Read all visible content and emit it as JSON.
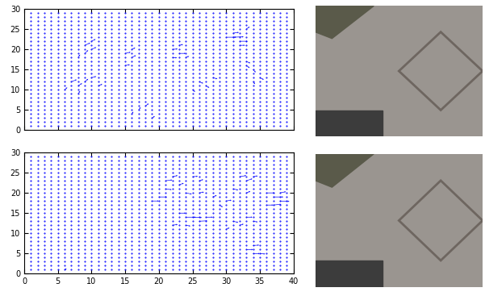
{
  "chart_data": [
    {
      "type": "quiver",
      "color": "#0000ff",
      "marker": "point",
      "xlim": [
        0,
        40
      ],
      "ylim": [
        0,
        30
      ],
      "xticks": [
        0,
        5,
        10,
        15,
        20,
        25,
        30,
        35,
        40
      ],
      "yticks": [
        0,
        5,
        10,
        15,
        20,
        25,
        30
      ],
      "tick_labels": "y",
      "grid_x": [
        1,
        2,
        3,
        4,
        5,
        6,
        7,
        8,
        9,
        10,
        11,
        12,
        13,
        14,
        15,
        16,
        17,
        18,
        19,
        20,
        21,
        22,
        23,
        24,
        25,
        26,
        27,
        28,
        29,
        30,
        31,
        32,
        33,
        34,
        35,
        36,
        37,
        38,
        39
      ],
      "grid_y": [
        1,
        2,
        3,
        4,
        5,
        6,
        7,
        8,
        9,
        10,
        11,
        12,
        13,
        14,
        15,
        16,
        17,
        18,
        19,
        20,
        21,
        22,
        23,
        24,
        25,
        26,
        27,
        28,
        29
      ],
      "vectors": [
        [
          9,
          21,
          0.8,
          0.6
        ],
        [
          10,
          22,
          0.6,
          0.5
        ],
        [
          9,
          19,
          0.5,
          0.8
        ],
        [
          10,
          20,
          0.7,
          0.5
        ],
        [
          8,
          18,
          0.3,
          0.7
        ],
        [
          15,
          19,
          0.8,
          0.3
        ],
        [
          16,
          18,
          0.6,
          0.5
        ],
        [
          15,
          16,
          0.7,
          0.2
        ],
        [
          16,
          20,
          0.5,
          0.4
        ],
        [
          22,
          20,
          0.8,
          0.1
        ],
        [
          23,
          19,
          1.0,
          0.0
        ],
        [
          22,
          18,
          0.7,
          -0.1
        ],
        [
          23,
          21,
          0.6,
          0.2
        ],
        [
          24,
          18,
          0.5,
          0.3
        ],
        [
          30,
          23,
          1.5,
          0.0
        ],
        [
          31,
          23,
          1.6,
          0.1
        ],
        [
          32,
          22,
          1.2,
          0.0
        ],
        [
          31,
          24,
          0.9,
          0.2
        ],
        [
          33,
          25,
          0.5,
          0.6
        ],
        [
          32,
          21,
          0.8,
          0.0
        ],
        [
          33,
          16,
          0.5,
          -0.6
        ],
        [
          34,
          15,
          0.4,
          -0.7
        ],
        [
          35,
          13,
          0.6,
          -0.5
        ],
        [
          34,
          12,
          0.3,
          -0.6
        ],
        [
          33,
          17,
          0.6,
          -0.4
        ],
        [
          7,
          12,
          0.8,
          0.5
        ],
        [
          8,
          11,
          0.6,
          0.6
        ],
        [
          9,
          12,
          0.5,
          0.7
        ],
        [
          10,
          13,
          0.7,
          0.3
        ],
        [
          6,
          10,
          0.4,
          0.6
        ],
        [
          8,
          9,
          0.3,
          0.7
        ],
        [
          11,
          11,
          0.6,
          0.4
        ],
        [
          17,
          5,
          0.3,
          0.7
        ],
        [
          18,
          6,
          0.5,
          0.6
        ],
        [
          16,
          4,
          0.2,
          0.6
        ],
        [
          19,
          3,
          0.4,
          0.5
        ],
        [
          26,
          12,
          0.6,
          -0.4
        ],
        [
          27,
          11,
          0.5,
          -0.5
        ],
        [
          28,
          13,
          0.7,
          -0.3
        ],
        [
          25,
          10,
          0.4,
          -0.5
        ]
      ]
    },
    {
      "type": "quiver",
      "color": "#0000ff",
      "marker": "point",
      "xlim": [
        0,
        40
      ],
      "ylim": [
        0,
        30
      ],
      "xticks": [
        0,
        5,
        10,
        15,
        20,
        25,
        30,
        35,
        40
      ],
      "yticks": [
        0,
        5,
        10,
        15,
        20,
        25,
        30
      ],
      "grid_x": [
        1,
        2,
        3,
        4,
        5,
        6,
        7,
        8,
        9,
        10,
        11,
        12,
        13,
        14,
        15,
        16,
        17,
        18,
        19,
        20,
        21,
        22,
        23,
        24,
        25,
        26,
        27,
        28,
        29,
        30,
        31,
        32,
        33,
        34,
        35,
        36,
        37,
        38,
        39
      ],
      "grid_y": [
        1,
        2,
        3,
        4,
        5,
        6,
        7,
        8,
        9,
        10,
        11,
        12,
        13,
        14,
        15,
        16,
        17,
        18,
        19,
        20,
        21,
        22,
        23,
        24,
        25,
        26,
        27,
        28,
        29
      ],
      "vectors": [
        [
          21,
          23,
          1.0,
          0.2
        ],
        [
          22,
          24,
          0.8,
          0.3
        ],
        [
          21,
          21,
          0.9,
          -0.2
        ],
        [
          23,
          22,
          0.7,
          0.4
        ],
        [
          20,
          19,
          1.2,
          0.0
        ],
        [
          19,
          18,
          1.0,
          0.0
        ],
        [
          25,
          24,
          0.8,
          0.1
        ],
        [
          26,
          23,
          0.6,
          0.3
        ],
        [
          24,
          20,
          0.9,
          -0.3
        ],
        [
          26,
          20,
          0.7,
          0.2
        ],
        [
          23,
          15,
          1.0,
          0.0
        ],
        [
          24,
          14,
          1.5,
          0.0
        ],
        [
          25,
          14,
          1.4,
          -0.1
        ],
        [
          26,
          13,
          1.2,
          0.1
        ],
        [
          27,
          14,
          1.0,
          0.0
        ],
        [
          22,
          12,
          0.8,
          0.2
        ],
        [
          24,
          12,
          0.7,
          -0.2
        ],
        [
          28,
          19,
          0.6,
          0.4
        ],
        [
          29,
          17,
          0.5,
          -0.5
        ],
        [
          30,
          18,
          0.8,
          0.2
        ],
        [
          32,
          24,
          1.0,
          0.3
        ],
        [
          33,
          23,
          0.9,
          0.5
        ],
        [
          34,
          24,
          0.7,
          0.2
        ],
        [
          31,
          21,
          0.8,
          -0.3
        ],
        [
          33,
          20,
          0.6,
          0.4
        ],
        [
          36,
          20,
          1.2,
          0.0
        ],
        [
          37,
          19,
          1.5,
          0.0
        ],
        [
          38,
          18,
          1.4,
          -0.1
        ],
        [
          37,
          17,
          1.2,
          0.2
        ],
        [
          36,
          17,
          1.0,
          0.0
        ],
        [
          38,
          20,
          0.9,
          0.3
        ],
        [
          31,
          13,
          0.8,
          -0.3
        ],
        [
          32,
          12,
          0.6,
          0.3
        ],
        [
          33,
          14,
          0.9,
          0.0
        ],
        [
          34,
          13,
          0.7,
          -0.2
        ],
        [
          30,
          11,
          0.5,
          0.4
        ],
        [
          33,
          6,
          1.0,
          0.0
        ],
        [
          34,
          7,
          0.9,
          0.1
        ],
        [
          35,
          5,
          0.8,
          -0.1
        ],
        [
          34,
          5,
          1.0,
          0.0
        ],
        [
          6,
          1,
          0.3,
          0.3
        ]
      ]
    }
  ]
}
